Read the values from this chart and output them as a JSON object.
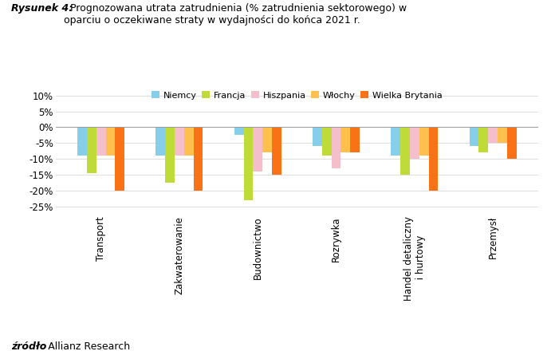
{
  "categories": [
    "Transport",
    "Zakwaterowanie",
    "Budownictwo",
    "Rozrywka",
    "Handel detaliczny\n i hurtowy",
    "Przemysł"
  ],
  "countries": [
    "Niemcy",
    "Francja",
    "Hiszpania",
    "Włochy",
    "Wielka Brytania"
  ],
  "values": [
    [
      -9.0,
      -9.0,
      -2.5,
      -6.0,
      -9.0,
      -6.0
    ],
    [
      -14.5,
      -17.5,
      -23.0,
      -9.0,
      -15.0,
      -8.0
    ],
    [
      -9.0,
      -9.0,
      -14.0,
      -13.0,
      -10.0,
      -5.0
    ],
    [
      -9.0,
      -9.0,
      -8.0,
      -8.0,
      -9.0,
      -5.0
    ],
    [
      -20.0,
      -20.0,
      -15.0,
      -8.0,
      -20.0,
      -10.0
    ]
  ],
  "colors": [
    "#87CEEB",
    "#BFDB38",
    "#F4BFCA",
    "#FFC04D",
    "#F97316"
  ],
  "ylim": [
    -27,
    11
  ],
  "yticks": [
    10,
    5,
    0,
    -5,
    -10,
    -15,
    -20,
    -25
  ],
  "title_bold": "Rysunek 4:",
  "title_rest": "  Prognozowana utrata zatrudnienia (% zatrudnienia sektorowego) w\noparciu o oczekiwane straty w wydajności do końca 2021 r.",
  "source_bold": "źródło",
  "source_rest": ": Allianz Research",
  "legend_labels": [
    "Niemcy",
    "Francja",
    "Hiszpania",
    "Włochy",
    "Wielka Brytania"
  ],
  "bar_width": 0.12,
  "group_width": 1.0
}
